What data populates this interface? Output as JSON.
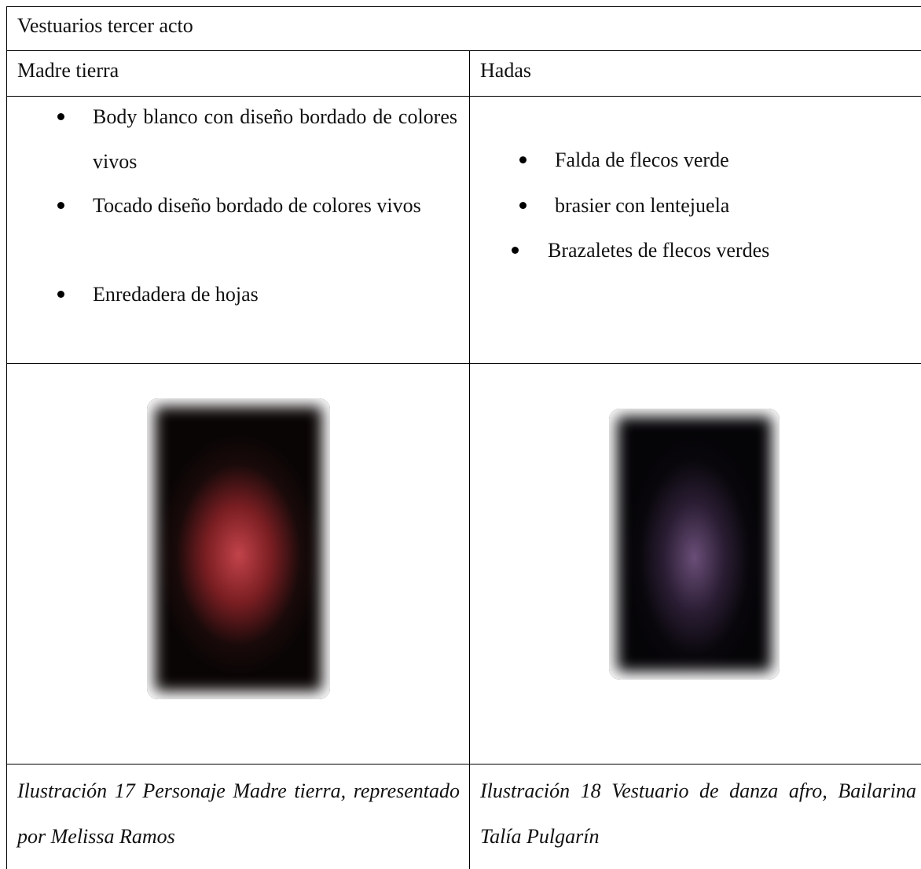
{
  "table": {
    "title": "Vestuarios tercer acto",
    "headers": [
      "Madre tierra",
      "Hadas"
    ],
    "items": [
      [
        "Body blanco con diseño bordado de colores vivos",
        "Tocado diseño bordado de colores vivos",
        "Enredadera de hojas"
      ],
      [
        "Falda de flecos verde",
        "brasier con lentejuela",
        "Brazaletes de flecos verdes"
      ]
    ],
    "captions": [
      "Ilustración 17 Personaje Madre tierra, representado por Melissa Ramos",
      "Ilustración 18 Vestuario de danza afro, Bailarina Talía Pulgarín"
    ]
  }
}
